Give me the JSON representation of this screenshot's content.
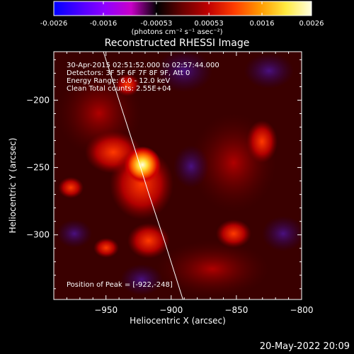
{
  "colorbar": {
    "tick_labels": [
      "-0.0026",
      "-0.0016",
      "-0.00053",
      "0.00053",
      "0.0016",
      "0.0026"
    ],
    "tick_values": [
      -0.0026,
      -0.0016,
      -0.00053,
      0.00053,
      0.0016,
      0.0026
    ],
    "range": [
      -0.0026,
      0.0026
    ],
    "title": "(photons cm⁻² s⁻¹ asec⁻²)",
    "colors": [
      "#0000ff",
      "#4a00ff",
      "#9000ff",
      "#c800c8",
      "#000000",
      "#6a0000",
      "#c00000",
      "#ff3c00",
      "#ff9900",
      "#ffea40",
      "#ffffe0"
    ]
  },
  "chart_data": {
    "type": "heatmap",
    "title": "Reconstructed RHESSI Image",
    "xlabel": "Heliocentric X (arcsec)",
    "ylabel": "Heliocentric Y (arcsec)",
    "xlim": [
      -990,
      -800
    ],
    "ylim": [
      -348,
      -164
    ],
    "xticks": [
      -950,
      -900,
      -850,
      -800
    ],
    "yticks": [
      -200,
      -250,
      -300
    ],
    "xtick_labels": [
      "−950",
      "−900",
      "−850",
      "−800"
    ],
    "ytick_labels": [
      "−200",
      "−250",
      "−300"
    ],
    "peak": {
      "x": -922,
      "y": -248
    },
    "limb_points": [
      [
        -952,
        -164
      ],
      [
        -940,
        -200
      ],
      [
        -928,
        -236
      ],
      [
        -917,
        -270
      ],
      [
        -905,
        -305
      ],
      [
        -891,
        -348
      ]
    ],
    "annotations": [
      "30-Apr-2015 02:51:52.000 to 02:57:44.000",
      "Detectors: 3F 5F 6F 7F 8F 9F, Att 0",
      "Energy Range: 6.0 - 12.0 keV",
      "Clean     Total counts: 2.55E+04"
    ],
    "peak_label": "Position of Peak = [-922,-248]",
    "grid": false
  },
  "date_stamp": "20-May-2022 20:09"
}
